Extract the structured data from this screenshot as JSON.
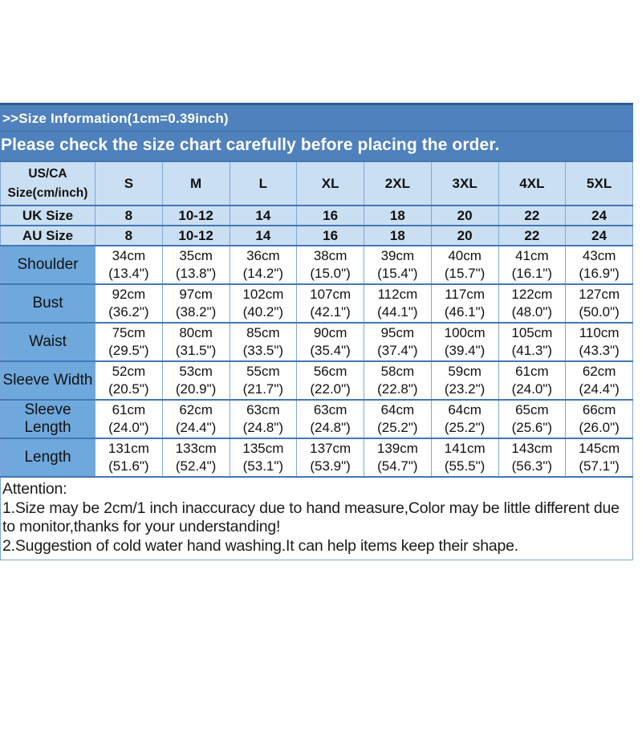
{
  "header": {
    "line1": ">>Size Information(1cm=0.39inch)",
    "line2": "Please check the size chart carefully before placing the order."
  },
  "size_table": {
    "corner_header": "US/CA Size(cm/inch)",
    "sizes": [
      "S",
      "M",
      "L",
      "XL",
      "2XL",
      "3XL",
      "4XL",
      "5XL"
    ],
    "uk_row": {
      "label": "UK Size",
      "values": [
        "8",
        "10-12",
        "14",
        "16",
        "18",
        "20",
        "22",
        "24"
      ]
    },
    "au_row": {
      "label": "AU Size",
      "values": [
        "8",
        "10-12",
        "14",
        "16",
        "18",
        "20",
        "22",
        "24"
      ]
    },
    "measurements": [
      {
        "label": "Shoulder",
        "cm": [
          "34cm",
          "35cm",
          "36cm",
          "38cm",
          "39cm",
          "40cm",
          "41cm",
          "43cm"
        ],
        "inch": [
          "(13.4\")",
          "(13.8\")",
          "(14.2\")",
          "(15.0\")",
          "(15.4\")",
          "(15.7\")",
          "(16.1\")",
          "(16.9\")"
        ]
      },
      {
        "label": "Bust",
        "cm": [
          "92cm",
          "97cm",
          "102cm",
          "107cm",
          "112cm",
          "117cm",
          "122cm",
          "127cm"
        ],
        "inch": [
          "(36.2\")",
          "(38.2\")",
          "(40.2\")",
          "(42.1\")",
          "(44.1\")",
          "(46.1\")",
          "(48.0\")",
          "(50.0\")"
        ]
      },
      {
        "label": "Waist",
        "cm": [
          "75cm",
          "80cm",
          "85cm",
          "90cm",
          "95cm",
          "100cm",
          "105cm",
          "110cm"
        ],
        "inch": [
          "(29.5\")",
          "(31.5\")",
          "(33.5\")",
          "(35.4\")",
          "(37.4\")",
          "(39.4\")",
          "(41.3\")",
          "(43.3\")"
        ]
      },
      {
        "label": "Sleeve Width",
        "cm": [
          "52cm",
          "53cm",
          "55cm",
          "56cm",
          "58cm",
          "59cm",
          "61cm",
          "62cm"
        ],
        "inch": [
          "(20.5\")",
          "(20.9\")",
          "(21.7\")",
          "(22.0\")",
          "(22.8\")",
          "(23.2\")",
          "(24.0\")",
          "(24.4\")"
        ]
      },
      {
        "label": "Sleeve Length",
        "cm": [
          "61cm",
          "62cm",
          "63cm",
          "63cm",
          "64cm",
          "64cm",
          "65cm",
          "66cm"
        ],
        "inch": [
          "(24.0\")",
          "(24.4\")",
          "(24.8\")",
          "(24.8\")",
          "(25.2\")",
          "(25.2\")",
          "(25.6\")",
          "(26.0\")"
        ]
      },
      {
        "label": "Length",
        "cm": [
          "131cm",
          "133cm",
          "135cm",
          "137cm",
          "139cm",
          "141cm",
          "143cm",
          "145cm"
        ],
        "inch": [
          "(51.6\")",
          "(52.4\")",
          "(53.1\")",
          "(53.9\")",
          "(54.7\")",
          "(55.5\")",
          "(56.3\")",
          "(57.1\")"
        ]
      }
    ]
  },
  "attention": {
    "heading": "Attention:",
    "note1": "1.Size may be 2cm/1 inch inaccuracy due to hand measure,Color may be little different due to monitor,thanks for your understanding!",
    "note2": "2.Suggestion of cold water hand washing.It can help items keep their shape."
  },
  "colors": {
    "title_bar": "#4f81bd",
    "title_bar_dark": "#2f5b8f",
    "title_divider": "#3d6da6",
    "header_cell": "#cbdff2",
    "label_cell": "#6fa8dc",
    "label_text": "#17375e",
    "border_strong": "#4377b6",
    "border_soft": "#7da7d8"
  },
  "chart_data": {
    "type": "table",
    "title": "Size Information(1cm=0.39inch)",
    "columns": [
      "US/CA Size(cm/inch)",
      "S",
      "M",
      "L",
      "XL",
      "2XL",
      "3XL",
      "4XL",
      "5XL"
    ],
    "rows": [
      [
        "UK Size",
        "8",
        "10-12",
        "14",
        "16",
        "18",
        "20",
        "22",
        "24"
      ],
      [
        "AU Size",
        "8",
        "10-12",
        "14",
        "16",
        "18",
        "20",
        "22",
        "24"
      ],
      [
        "Shoulder",
        "34cm (13.4\")",
        "35cm (13.8\")",
        "36cm (14.2\")",
        "38cm (15.0\")",
        "39cm (15.4\")",
        "40cm (15.7\")",
        "41cm (16.1\")",
        "43cm (16.9\")"
      ],
      [
        "Bust",
        "92cm (36.2\")",
        "97cm (38.2\")",
        "102cm (40.2\")",
        "107cm (42.1\")",
        "112cm (44.1\")",
        "117cm (46.1\")",
        "122cm (48.0\")",
        "127cm (50.0\")"
      ],
      [
        "Waist",
        "75cm (29.5\")",
        "80cm (31.5\")",
        "85cm (33.5\")",
        "90cm (35.4\")",
        "95cm (37.4\")",
        "100cm (39.4\")",
        "105cm (41.3\")",
        "110cm (43.3\")"
      ],
      [
        "Sleeve Width",
        "52cm (20.5\")",
        "53cm (20.9\")",
        "55cm (21.7\")",
        "56cm (22.0\")",
        "58cm (22.8\")",
        "59cm (23.2\")",
        "61cm (24.0\")",
        "62cm (24.4\")"
      ],
      [
        "Sleeve Length",
        "61cm (24.0\")",
        "62cm (24.4\")",
        "63cm (24.8\")",
        "63cm (24.8\")",
        "64cm (25.2\")",
        "64cm (25.2\")",
        "65cm (25.6\")",
        "66cm (26.0\")"
      ],
      [
        "Length",
        "131cm (51.6\")",
        "133cm (52.4\")",
        "135cm (53.1\")",
        "137cm (53.9\")",
        "139cm (54.7\")",
        "141cm (55.5\")",
        "143cm (56.3\")",
        "145cm (57.1\")"
      ]
    ]
  }
}
